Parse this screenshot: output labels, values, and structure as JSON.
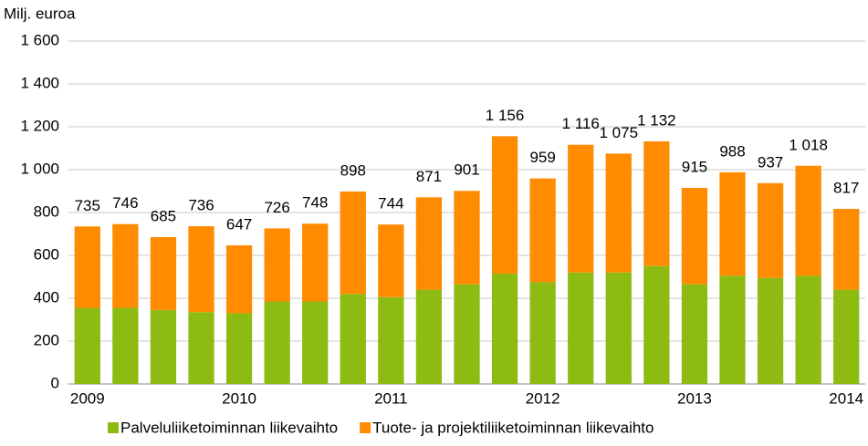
{
  "chart_data": {
    "type": "stacked_bar",
    "y_label": "Milj. euroa",
    "categories": [
      "2009",
      null,
      null,
      null,
      "2010",
      null,
      null,
      null,
      "2011",
      null,
      null,
      null,
      "2012",
      null,
      null,
      null,
      "2013",
      null,
      null,
      null,
      "2014"
    ],
    "series": [
      {
        "name": "Palveluliiketoiminnan liikevaihto",
        "color": "#8dbb12",
        "values": [
          355,
          355,
          345,
          335,
          330,
          385,
          385,
          420,
          405,
          440,
          465,
          515,
          475,
          520,
          520,
          550,
          465,
          505,
          495,
          505,
          440
        ]
      },
      {
        "name": "Tuote- ja projektiliiketoiminnan liikevaihto",
        "color": "#ff8c00",
        "values": [
          380,
          391,
          340,
          401,
          317,
          341,
          363,
          478,
          339,
          431,
          436,
          641,
          484,
          596,
          555,
          582,
          450,
          483,
          442,
          513,
          377
        ]
      }
    ],
    "totals": [
      735,
      746,
      685,
      736,
      647,
      726,
      748,
      898,
      744,
      871,
      901,
      1156,
      959,
      1116,
      1075,
      1132,
      915,
      988,
      937,
      1018,
      817
    ],
    "total_labels": [
      "735",
      "746",
      "685",
      "736",
      "647",
      "726",
      "748",
      "898",
      "744",
      "871",
      "901",
      "1 156",
      "959",
      "1 116",
      "1 075",
      "1 132",
      "915",
      "988",
      "937",
      "1 018",
      "817"
    ],
    "ylim": [
      0,
      1600
    ],
    "yticks": [
      0,
      200,
      400,
      600,
      800,
      {
        "value": 1000,
        "label": "1 000"
      },
      {
        "value": 1200,
        "label": "1 200"
      },
      {
        "value": 1400,
        "label": "1 400"
      },
      {
        "value": 1600,
        "label": "1 600"
      }
    ],
    "grid": true,
    "legend": "bottom"
  }
}
